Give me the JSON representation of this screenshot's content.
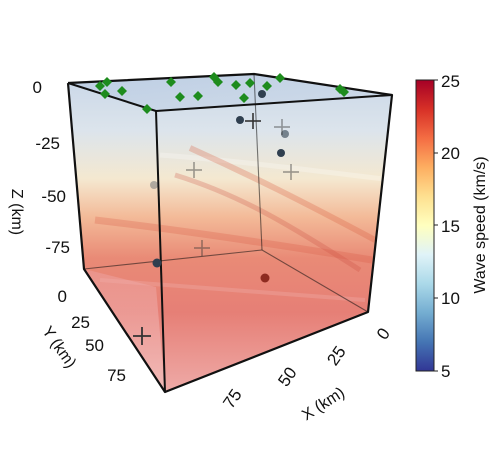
{
  "axes": {
    "z": {
      "label": "Z (km)",
      "ticks": [
        "0",
        "-25",
        "-50",
        "-75"
      ]
    },
    "y": {
      "label": "Y (km)",
      "ticks": [
        "0",
        "25",
        "50",
        "75"
      ]
    },
    "x": {
      "label": "X (km)",
      "ticks": [
        "0",
        "25",
        "50",
        "75"
      ]
    }
  },
  "colorbar": {
    "label": "Wave speed (km/s)",
    "ticks": [
      "25",
      "20",
      "15",
      "10",
      "5"
    ],
    "min": 5,
    "max": 25,
    "colormap": [
      "#313695",
      "#4575b4",
      "#74add1",
      "#abd9e9",
      "#e0f3f8",
      "#ffffbf",
      "#fee090",
      "#fdae61",
      "#f46d43",
      "#d73027",
      "#a50026"
    ]
  },
  "colors": {
    "station_marker": "#1e8c1e",
    "event_dot": "#2f3f4f",
    "event_dot_red": "#8e2b20",
    "cross_marker": "#333333"
  }
}
